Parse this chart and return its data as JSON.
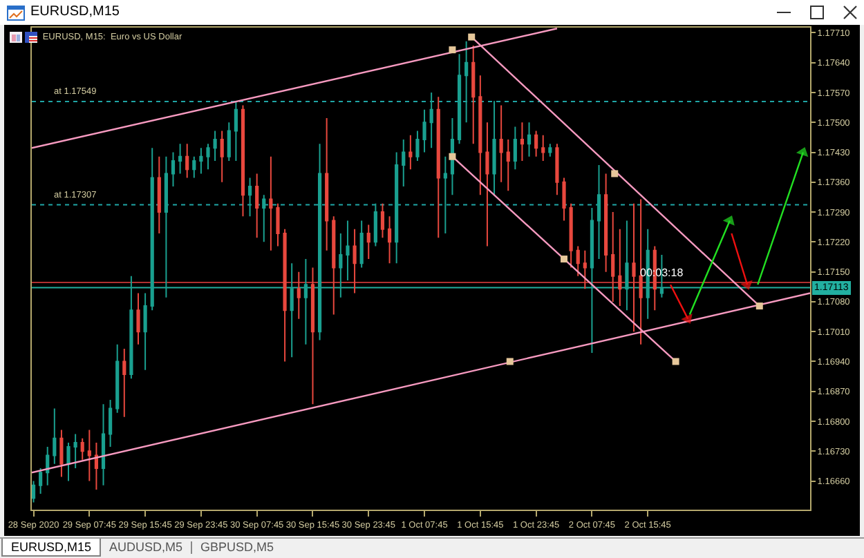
{
  "chart_data": {
    "type": "candlestick",
    "title": "EURUSD, M15:  Euro vs US Dollar",
    "annotations": [
      "EURUSD,M15",
      "EURUSD,M15",
      "AUDUSD,M5",
      "GBPUSD,M5",
      {
        "text": "00:03:18",
        "x": "2020-10-02T17:45",
        "y": 1.1714
      }
    ],
    "xlim": [
      "2020-09-28T23:30",
      "2020-10-03T15:00"
    ],
    "xticks": [
      {
        "value": "2020-09-28T23:45",
        "label": "28 Sep 2020"
      },
      {
        "value": "2020-09-29T07:45",
        "label": "29 Sep 07:45"
      },
      {
        "value": "2020-09-29T15:45",
        "label": "29 Sep 15:45"
      },
      {
        "value": "2020-09-29T23:45",
        "label": "29 Sep 23:45"
      },
      {
        "value": "2020-09-30T07:45",
        "label": "30 Sep 07:45"
      },
      {
        "value": "2020-09-30T15:45",
        "label": "30 Sep 15:45"
      },
      {
        "value": "2020-09-30T23:45",
        "label": "30 Sep 23:45"
      },
      {
        "value": "2020-10-01T07:45",
        "label": "1 Oct 07:45"
      },
      {
        "value": "2020-10-01T15:45",
        "label": "1 Oct 15:45"
      },
      {
        "value": "2020-10-01T23:45",
        "label": "1 Oct 23:45"
      },
      {
        "value": "2020-10-02T07:45",
        "label": "2 Oct 07:45"
      },
      {
        "value": "2020-10-02T15:45",
        "label": "2 Oct 15:45"
      }
    ],
    "ylim": [
      1.16593,
      1.17722
    ],
    "yticks": [
      {
        "value": 1.1771,
        "label": "1.17710"
      },
      {
        "value": 1.1764,
        "label": "1.17640"
      },
      {
        "value": 1.1757,
        "label": "1.17570"
      },
      {
        "value": 1.175,
        "label": "1.17500"
      },
      {
        "value": 1.1743,
        "label": "1.17430"
      },
      {
        "value": 1.1736,
        "label": "1.17360"
      },
      {
        "value": 1.1729,
        "label": "1.17290"
      },
      {
        "value": 1.1722,
        "label": "1.17220"
      },
      {
        "value": 1.1715,
        "label": "1.17150"
      },
      {
        "value": 1.1708,
        "label": "1.17080"
      },
      {
        "value": 1.1701,
        "label": "1.17010"
      },
      {
        "value": 1.1694,
        "label": "1.16940"
      },
      {
        "value": 1.1687,
        "label": "1.16870"
      },
      {
        "value": 1.168,
        "label": "1.16800"
      },
      {
        "value": 1.1673,
        "label": "1.16730"
      },
      {
        "value": 1.1666,
        "label": "1.16660"
      }
    ],
    "series": [
      {
        "type": "line",
        "color": "#f79ac0",
        "x": [
          "2020-09-28T23:30",
          "2020-10-02T02:45"
        ],
        "values": [
          1.1744,
          1.1772
        ]
      },
      {
        "type": "line",
        "color": "#f79ac0",
        "x": [
          "2020-09-28T23:30",
          "2020-10-03T15:00"
        ],
        "values": [
          1.1668,
          1.171
        ]
      },
      {
        "type": "line",
        "color": "#f79ac0",
        "x": [
          "2020-10-01T14:30",
          "2020-10-03T07:45"
        ],
        "values": [
          1.177,
          1.1707
        ]
      },
      {
        "type": "line",
        "color": "#f79ac0",
        "x": [
          "2020-10-01T11:45",
          "2020-10-02T19:45"
        ],
        "values": [
          1.1742,
          1.1694
        ]
      },
      {
        "type": "scatter",
        "marker": "square",
        "color": "#e6c79a",
        "x": [
          "2020-10-01T11:45",
          "2020-10-01T11:45",
          "2020-10-01T14:30",
          "2020-10-02T11:00",
          "2020-10-02T03:45",
          "2020-10-02T19:45",
          "2020-10-01T20:00",
          "2020-10-03T07:45"
        ],
        "values": [
          1.1767,
          1.1742,
          1.177,
          1.1738,
          1.1718,
          1.1694,
          1.1694,
          1.1707
        ]
      },
      {
        "type": "line",
        "marker": "triangle",
        "color": "#f01010",
        "x": [
          "2020-10-02T19:00",
          "2020-10-02T21:30"
        ],
        "values": [
          1.1712,
          1.1704
        ]
      },
      {
        "type": "line",
        "marker": "triangle",
        "color": "#22e022",
        "x": [
          "2020-10-02T21:45",
          "2020-10-03T03:30"
        ],
        "values": [
          1.1705,
          1.1727
        ]
      },
      {
        "type": "line",
        "marker": "triangle",
        "color": "#f01010",
        "x": [
          "2020-10-03T03:45",
          "2020-10-03T06:00"
        ],
        "values": [
          1.1724,
          1.1712
        ]
      },
      {
        "type": "line",
        "marker": "triangle",
        "color": "#22e022",
        "x": [
          "2020-10-03T07:30",
          "2020-10-03T14:00"
        ],
        "values": [
          1.1712,
          1.1743
        ]
      },
      {
        "x": [
          "2020-09-28T23:45",
          "2020-09-29T00:45",
          "2020-09-29T01:45",
          "2020-09-29T02:45",
          "2020-09-29T03:45",
          "2020-09-29T04:45",
          "2020-09-29T05:45",
          "2020-09-29T06:45",
          "2020-09-29T07:45",
          "2020-09-29T08:45",
          "2020-09-29T09:45",
          "2020-09-29T10:45",
          "2020-09-29T11:45",
          "2020-09-29T12:45",
          "2020-09-29T13:45",
          "2020-09-29T14:45",
          "2020-09-29T15:45",
          "2020-09-29T16:45",
          "2020-09-29T17:45",
          "2020-09-29T18:45",
          "2020-09-29T19:45",
          "2020-09-29T20:45",
          "2020-09-29T21:45",
          "2020-09-29T22:45",
          "2020-09-29T23:45",
          "2020-09-30T00:45",
          "2020-09-30T01:45",
          "2020-09-30T02:45",
          "2020-09-30T03:45",
          "2020-09-30T04:45",
          "2020-09-30T05:45",
          "2020-09-30T06:45",
          "2020-09-30T07:45",
          "2020-09-30T08:45",
          "2020-09-30T09:45",
          "2020-09-30T10:45",
          "2020-09-30T11:45",
          "2020-09-30T12:45",
          "2020-09-30T13:45",
          "2020-09-30T14:45",
          "2020-09-30T15:45",
          "2020-09-30T16:45",
          "2020-09-30T17:45",
          "2020-09-30T18:45",
          "2020-09-30T19:45",
          "2020-09-30T20:45",
          "2020-09-30T21:45",
          "2020-09-30T22:45",
          "2020-09-30T23:45",
          "2020-10-01T00:45",
          "2020-10-01T01:45",
          "2020-10-01T02:45",
          "2020-10-01T03:45",
          "2020-10-01T04:45",
          "2020-10-01T05:45",
          "2020-10-01T06:45",
          "2020-10-01T07:45",
          "2020-10-01T08:45",
          "2020-10-01T09:45",
          "2020-10-01T10:45",
          "2020-10-01T11:45",
          "2020-10-01T12:45",
          "2020-10-01T13:45",
          "2020-10-01T14:45",
          "2020-10-01T15:45",
          "2020-10-01T16:45",
          "2020-10-01T17:45",
          "2020-10-01T18:45",
          "2020-10-01T19:45",
          "2020-10-01T20:45",
          "2020-10-01T21:45",
          "2020-10-01T22:45",
          "2020-10-01T23:45",
          "2020-10-02T00:45",
          "2020-10-02T01:45",
          "2020-10-02T02:45",
          "2020-10-02T03:45",
          "2020-10-02T04:45",
          "2020-10-02T05:45",
          "2020-10-02T06:45",
          "2020-10-02T07:45",
          "2020-10-02T08:45",
          "2020-10-02T09:45",
          "2020-10-02T10:45",
          "2020-10-02T11:45",
          "2020-10-02T12:45",
          "2020-10-02T13:45",
          "2020-10-02T14:45",
          "2020-10-02T15:45",
          "2020-10-02T16:45",
          "2020-10-02T17:45"
        ],
        "ohlc": [
          [
            1.1662,
            1.1666,
            1.1661,
            1.1665
          ],
          [
            1.1665,
            1.1669,
            1.1663,
            1.1668
          ],
          [
            1.1668,
            1.1674,
            1.1665,
            1.1672
          ],
          [
            1.1672,
            1.1683,
            1.167,
            1.1676
          ],
          [
            1.1676,
            1.1678,
            1.1667,
            1.167
          ],
          [
            1.167,
            1.1675,
            1.1666,
            1.1674
          ],
          [
            1.1674,
            1.1677,
            1.1669,
            1.1675
          ],
          [
            1.1675,
            1.1676,
            1.1671,
            1.1673
          ],
          [
            1.1673,
            1.1678,
            1.1666,
            1.1672
          ],
          [
            1.1672,
            1.1675,
            1.1664,
            1.1669
          ],
          [
            1.1669,
            1.1684,
            1.1665,
            1.1677
          ],
          [
            1.1677,
            1.1685,
            1.1674,
            1.1683
          ],
          [
            1.1683,
            1.1698,
            1.1682,
            1.1694
          ],
          [
            1.1694,
            1.1697,
            1.1681,
            1.1691
          ],
          [
            1.1691,
            1.1714,
            1.169,
            1.1706
          ],
          [
            1.1706,
            1.171,
            1.1698,
            1.1701
          ],
          [
            1.1701,
            1.171,
            1.1692,
            1.1707
          ],
          [
            1.1707,
            1.1744,
            1.1706,
            1.1737
          ],
          [
            1.1737,
            1.1742,
            1.1724,
            1.1729
          ],
          [
            1.1729,
            1.1742,
            1.1709,
            1.1738
          ],
          [
            1.1738,
            1.1743,
            1.1735,
            1.1741
          ],
          [
            1.1741,
            1.1745,
            1.1738,
            1.1742
          ],
          [
            1.1742,
            1.1745,
            1.1737,
            1.1739
          ],
          [
            1.1739,
            1.1742,
            1.1737,
            1.1741
          ],
          [
            1.1741,
            1.1744,
            1.1738,
            1.1742
          ],
          [
            1.1742,
            1.1745,
            1.1739,
            1.1744
          ],
          [
            1.1744,
            1.1748,
            1.1741,
            1.1746
          ],
          [
            1.1746,
            1.1748,
            1.1736,
            1.1742
          ],
          [
            1.1742,
            1.175,
            1.1741,
            1.1748
          ],
          [
            1.1748,
            1.1755,
            1.1741,
            1.1753
          ],
          [
            1.1753,
            1.1754,
            1.1728,
            1.1733
          ],
          [
            1.1733,
            1.1737,
            1.1728,
            1.1735
          ],
          [
            1.1735,
            1.1738,
            1.1723,
            1.173
          ],
          [
            1.173,
            1.1733,
            1.1722,
            1.1732
          ],
          [
            1.1732,
            1.1742,
            1.172,
            1.173
          ],
          [
            1.173,
            1.1731,
            1.1721,
            1.1724
          ],
          [
            1.1724,
            1.1725,
            1.1694,
            1.1706
          ],
          [
            1.1706,
            1.1717,
            1.1695,
            1.1711
          ],
          [
            1.1711,
            1.1715,
            1.1704,
            1.1709
          ],
          [
            1.1709,
            1.1718,
            1.1698,
            1.1712
          ],
          [
            1.1712,
            1.1716,
            1.1684,
            1.1701
          ],
          [
            1.1701,
            1.1745,
            1.1699,
            1.1738
          ],
          [
            1.1738,
            1.1751,
            1.172,
            1.1727
          ],
          [
            1.1727,
            1.1728,
            1.1705,
            1.1716
          ],
          [
            1.1716,
            1.1724,
            1.1709,
            1.1719
          ],
          [
            1.1719,
            1.1727,
            1.1713,
            1.1721
          ],
          [
            1.1721,
            1.1725,
            1.171,
            1.1717
          ],
          [
            1.1717,
            1.1727,
            1.1716,
            1.1724
          ],
          [
            1.1724,
            1.1726,
            1.1718,
            1.1722
          ],
          [
            1.1722,
            1.1731,
            1.1721,
            1.1729
          ],
          [
            1.1729,
            1.1731,
            1.1723,
            1.1725
          ],
          [
            1.1725,
            1.1728,
            1.1717,
            1.1722
          ],
          [
            1.1722,
            1.1743,
            1.1717,
            1.174
          ],
          [
            1.174,
            1.1746,
            1.1735,
            1.1743
          ],
          [
            1.1743,
            1.1747,
            1.1739,
            1.1742
          ],
          [
            1.1742,
            1.1748,
            1.1741,
            1.1746
          ],
          [
            1.1746,
            1.1753,
            1.1743,
            1.175
          ],
          [
            1.175,
            1.1757,
            1.1744,
            1.1753
          ],
          [
            1.1753,
            1.1756,
            1.1723,
            1.1737
          ],
          [
            1.1737,
            1.1742,
            1.1724,
            1.1738
          ],
          [
            1.1738,
            1.1751,
            1.1733,
            1.1746
          ],
          [
            1.1746,
            1.1766,
            1.1745,
            1.1761
          ],
          [
            1.1761,
            1.1769,
            1.175,
            1.1764
          ],
          [
            1.1764,
            1.1768,
            1.1745,
            1.1756
          ],
          [
            1.1756,
            1.1761,
            1.1733,
            1.1743
          ],
          [
            1.1743,
            1.175,
            1.1721,
            1.1738
          ],
          [
            1.1738,
            1.1755,
            1.1733,
            1.1746
          ],
          [
            1.1746,
            1.1754,
            1.1736,
            1.1743
          ],
          [
            1.1743,
            1.1746,
            1.1734,
            1.1741
          ],
          [
            1.1741,
            1.1749,
            1.1739,
            1.1746
          ],
          [
            1.1746,
            1.175,
            1.1741,
            1.1745
          ],
          [
            1.1745,
            1.175,
            1.1742,
            1.1747
          ],
          [
            1.1747,
            1.1748,
            1.1742,
            1.1744
          ],
          [
            1.1744,
            1.1747,
            1.1741,
            1.1743
          ],
          [
            1.1743,
            1.1745,
            1.1742,
            1.1744
          ],
          [
            1.1744,
            1.1745,
            1.1733,
            1.1736
          ],
          [
            1.1736,
            1.1737,
            1.1727,
            1.173
          ],
          [
            1.173,
            1.1731,
            1.1716,
            1.172
          ],
          [
            1.172,
            1.1721,
            1.1714,
            1.1717
          ],
          [
            1.1717,
            1.172,
            1.1711,
            1.1716
          ],
          [
            1.1716,
            1.173,
            1.1696,
            1.1727
          ],
          [
            1.1727,
            1.174,
            1.1718,
            1.1733
          ],
          [
            1.1733,
            1.1738,
            1.1715,
            1.1719
          ],
          [
            1.1719,
            1.1729,
            1.1708,
            1.1714
          ],
          [
            1.1714,
            1.1725,
            1.1707,
            1.1711
          ],
          [
            1.1711,
            1.1727,
            1.1706,
            1.1717
          ],
          [
            1.1717,
            1.1731,
            1.1701,
            1.1714
          ],
          [
            1.1714,
            1.1732,
            1.1698,
            1.1709
          ],
          [
            1.1709,
            1.1725,
            1.1704,
            1.172
          ],
          [
            1.172,
            1.1721,
            1.1706,
            1.1711
          ],
          [
            1.171,
            1.1719,
            1.1709,
            1.1711
          ]
        ],
        "colors": [
          "#1aa090",
          "#1aa090",
          "#1aa090",
          "#1aa090",
          "#e8483e",
          "#1aa090",
          "#1aa090",
          "#e8483e",
          "#e8483e",
          "#e8483e",
          "#1aa090",
          "#1aa090",
          "#1aa090",
          "#e8483e",
          "#1aa090",
          "#e8483e",
          "#1aa090",
          "#1aa090",
          "#e8483e",
          "#1aa090",
          "#1aa090",
          "#1aa090",
          "#e8483e",
          "#1aa090",
          "#1aa090",
          "#1aa090",
          "#1aa090",
          "#e8483e",
          "#1aa090",
          "#1aa090",
          "#e8483e",
          "#1aa090",
          "#e8483e",
          "#1aa090",
          "#e8483e",
          "#e8483e",
          "#e8483e",
          "#1aa090",
          "#e8483e",
          "#1aa090",
          "#e8483e",
          "#1aa090",
          "#e8483e",
          "#e8483e",
          "#1aa090",
          "#1aa090",
          "#e8483e",
          "#1aa090",
          "#e8483e",
          "#1aa090",
          "#e8483e",
          "#e8483e",
          "#1aa090",
          "#1aa090",
          "#e8483e",
          "#1aa090",
          "#1aa090",
          "#1aa090",
          "#e8483e",
          "#1aa090",
          "#1aa090",
          "#1aa090",
          "#1aa090",
          "#e8483e",
          "#e8483e",
          "#e8483e",
          "#1aa090",
          "#e8483e",
          "#e8483e",
          "#1aa090",
          "#e8483e",
          "#1aa090",
          "#e8483e",
          "#e8483e",
          "#1aa090",
          "#e8483e",
          "#e8483e",
          "#e8483e",
          "#e8483e",
          "#e8483e",
          "#1aa090",
          "#1aa090",
          "#e8483e",
          "#e8483e",
          "#e8483e",
          "#1aa090",
          "#e8483e",
          "#e8483e",
          "#1aa090",
          "#e8483e",
          "#1aa090"
        ]
      }
    ],
    "ref_lines": [
      {
        "axis": "y",
        "value": 1.17549,
        "label": "at 1.17549",
        "color": "#1fa5a5",
        "line_style": "dotted"
      },
      {
        "axis": "y",
        "value": 1.17307,
        "label": "at 1.17307",
        "color": "#1fa5a5",
        "line_style": "dotted"
      },
      {
        "axis": "y",
        "value": 1.17113,
        "label": "1.17113",
        "color": "#22b0a0",
        "line_style": "solid"
      },
      {
        "axis": "y",
        "value": 1.17125,
        "color": "#b03030",
        "line_style": "solid"
      }
    ]
  }
}
